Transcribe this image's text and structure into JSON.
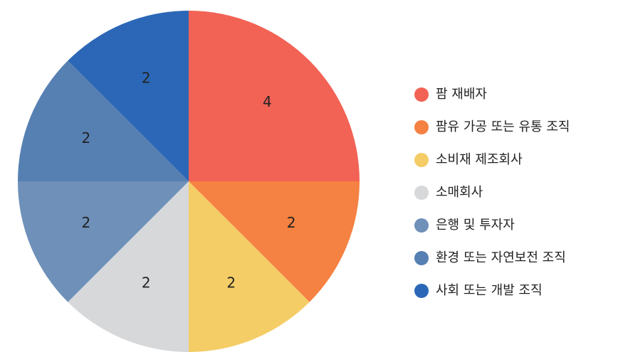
{
  "chart_data": {
    "type": "pie",
    "categories": [
      "팜 재배자",
      "팜유 가공 또는 유통 조직",
      "소비재 제조회사",
      "소매회사",
      "은행 및 투자자",
      "환경 또는 자연보전 조직",
      "사회 또는 개발 조직"
    ],
    "values": [
      4,
      2,
      2,
      2,
      2,
      2,
      2
    ],
    "colors": [
      "#f26355",
      "#f58142",
      "#f4cd67",
      "#d7d8da",
      "#6e90b9",
      "#5680b2",
      "#2b67b6"
    ],
    "legend": "right"
  }
}
